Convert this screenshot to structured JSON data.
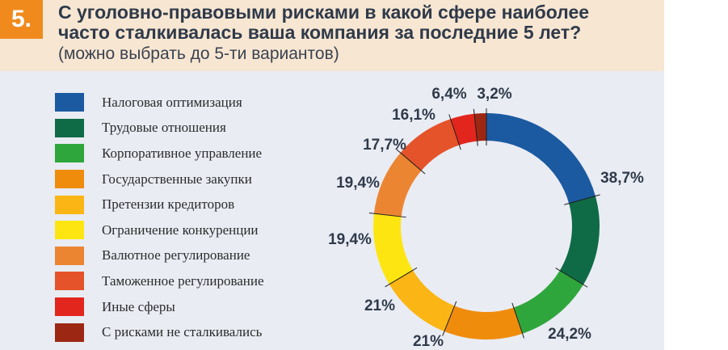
{
  "header": {
    "badge": "5.",
    "title": "С уголовно-правовыми рисками в какой сфере наиболее\n часто сталкивалась ваша компания за последние 5 лет?",
    "subtitle": "(можно выбрать до 5-ти вариантов)"
  },
  "chart_data": {
    "type": "pie",
    "title": "",
    "legend_position": "left",
    "categories": [
      "Налоговая оптимизация",
      "Трудовые отношения",
      "Корпоративное управление",
      "Государственные закупки",
      "Претензии кредиторов",
      "Ограничение конкуренции",
      "Валютное регулирование",
      "Таможенное регулирование",
      "Иные сферы",
      "С рисками не сталкивались"
    ],
    "values": [
      38.7,
      24.2,
      21,
      21,
      19.4,
      19.4,
      17.7,
      16.1,
      6.4,
      3.2
    ],
    "value_labels": [
      "38,7%",
      "24,2%",
      "21%",
      "21%",
      "19,4%",
      "19,4%",
      "17,7%",
      "16,1%",
      "6,4%",
      "3,2%"
    ],
    "colors": [
      "#1b5aa0",
      "#0f6b45",
      "#2fa63c",
      "#f08c0c",
      "#fbb514",
      "#fde512",
      "#ec8532",
      "#e5532a",
      "#e2261d",
      "#9c2814"
    ]
  }
}
